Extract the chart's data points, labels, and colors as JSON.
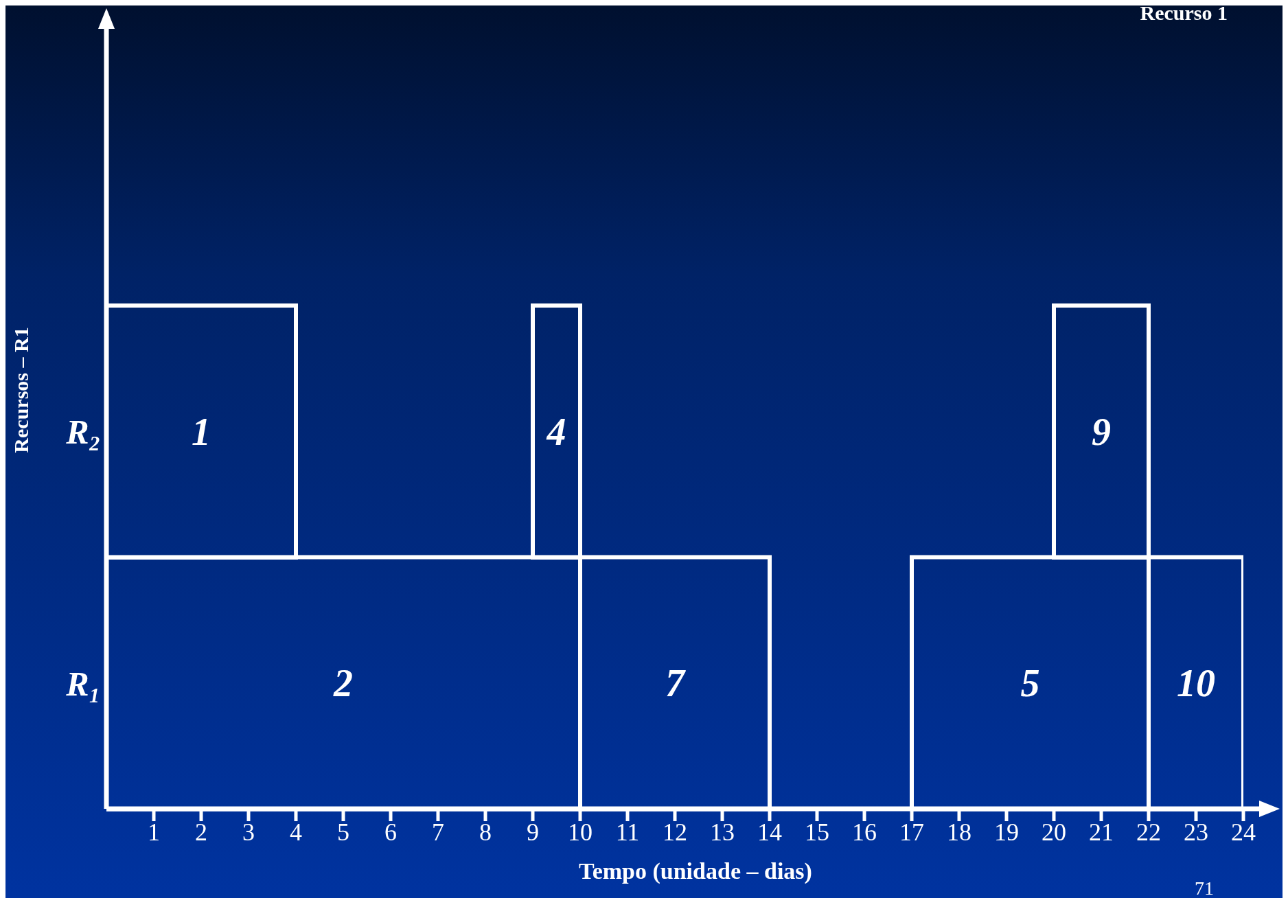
{
  "chart_data": {
    "type": "bar",
    "orientation": "horizontal",
    "title": "Recurso 1",
    "xlabel": "Tempo (unidade – dias)",
    "ylabel": "Recursos – R1",
    "categories": [
      "R₂",
      "R₁"
    ],
    "series": [
      {
        "name": "1",
        "color": "#ffffff",
        "base": [
          0,
          null
        ],
        "values": [
          4,
          null
        ]
      },
      {
        "name": "2",
        "color": "#ffffff",
        "base": [
          null,
          0
        ],
        "values": [
          null,
          10
        ]
      },
      {
        "name": "4",
        "color": "#ffffff",
        "base": [
          9,
          null
        ],
        "values": [
          1,
          null
        ]
      },
      {
        "name": "7",
        "color": "#ffffff",
        "base": [
          null,
          10
        ],
        "values": [
          null,
          4
        ]
      },
      {
        "name": "9",
        "color": "#ffffff",
        "base": [
          20,
          null
        ],
        "values": [
          2,
          null
        ]
      },
      {
        "name": "5",
        "color": "#ffffff",
        "base": [
          null,
          17
        ],
        "values": [
          null,
          5
        ]
      },
      {
        "name": "10",
        "color": "#ffffff",
        "base": [
          null,
          22
        ],
        "values": [
          null,
          2
        ]
      }
    ],
    "xlim": [
      0,
      24
    ],
    "xticks": [
      1,
      2,
      3,
      4,
      5,
      6,
      7,
      8,
      9,
      10,
      11,
      12,
      13,
      14,
      15,
      16,
      17,
      18,
      19,
      20,
      21,
      22,
      23,
      24
    ],
    "grid": false,
    "legend": false,
    "annotations": [
      "71"
    ]
  }
}
